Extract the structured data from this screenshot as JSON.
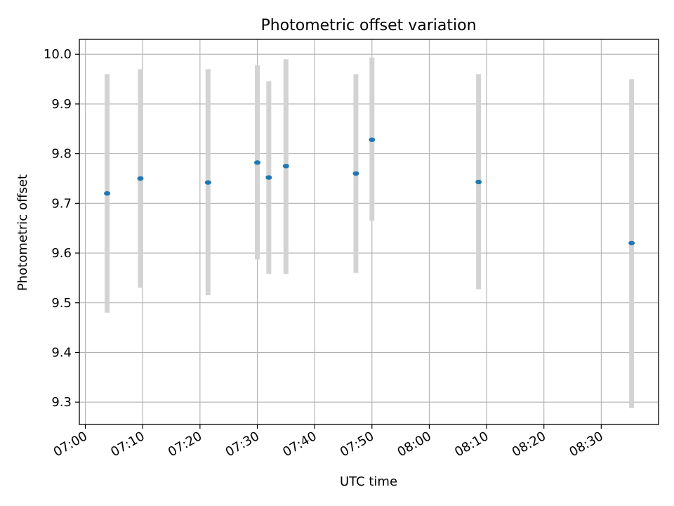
{
  "chart_data": {
    "type": "scatter",
    "title": "Photometric offset variation",
    "xlabel": "UTC time",
    "ylabel": "Photometric offset",
    "x_ticks": [
      "07:00",
      "07:10",
      "07:20",
      "07:30",
      "07:40",
      "07:50",
      "08:00",
      "08:10",
      "08:20",
      "08:30"
    ],
    "x_tick_minutes": [
      0,
      10,
      20,
      30,
      40,
      50,
      60,
      70,
      80,
      90
    ],
    "xlim": [
      "06:59",
      "07:99"
    ],
    "y_ticks": [
      "9.3",
      "9.4",
      "9.5",
      "9.6",
      "9.7",
      "9.8",
      "9.9",
      "10.0"
    ],
    "y_tick_values": [
      9.3,
      9.4,
      9.5,
      9.6,
      9.7,
      9.8,
      9.9,
      10.0
    ],
    "ylim": [
      9.255,
      10.03
    ],
    "grid": true,
    "marker_color": "#1f77b4",
    "errorbar_color": "#d3d3d3",
    "points": [
      {
        "time": "07:03.8",
        "y": 9.72,
        "ylow": 9.48,
        "yhigh": 9.96
      },
      {
        "time": "07:09.6",
        "y": 9.75,
        "ylow": 9.53,
        "yhigh": 9.97
      },
      {
        "time": "07:21.4",
        "y": 9.742,
        "ylow": 9.515,
        "yhigh": 9.97
      },
      {
        "time": "07:30.0",
        "y": 9.782,
        "ylow": 9.587,
        "yhigh": 9.978
      },
      {
        "time": "07:32.0",
        "y": 9.752,
        "ylow": 9.558,
        "yhigh": 9.946
      },
      {
        "time": "07:35.0",
        "y": 9.775,
        "ylow": 9.558,
        "yhigh": 9.99
      },
      {
        "time": "07:47.2",
        "y": 9.76,
        "ylow": 9.56,
        "yhigh": 9.96
      },
      {
        "time": "07:50.0",
        "y": 9.828,
        "ylow": 9.665,
        "yhigh": 9.993
      },
      {
        "time": "08:08.6",
        "y": 9.743,
        "ylow": 9.527,
        "yhigh": 9.96
      },
      {
        "time": "08:35.3",
        "y": 9.62,
        "ylow": 9.288,
        "yhigh": 9.95
      }
    ]
  }
}
